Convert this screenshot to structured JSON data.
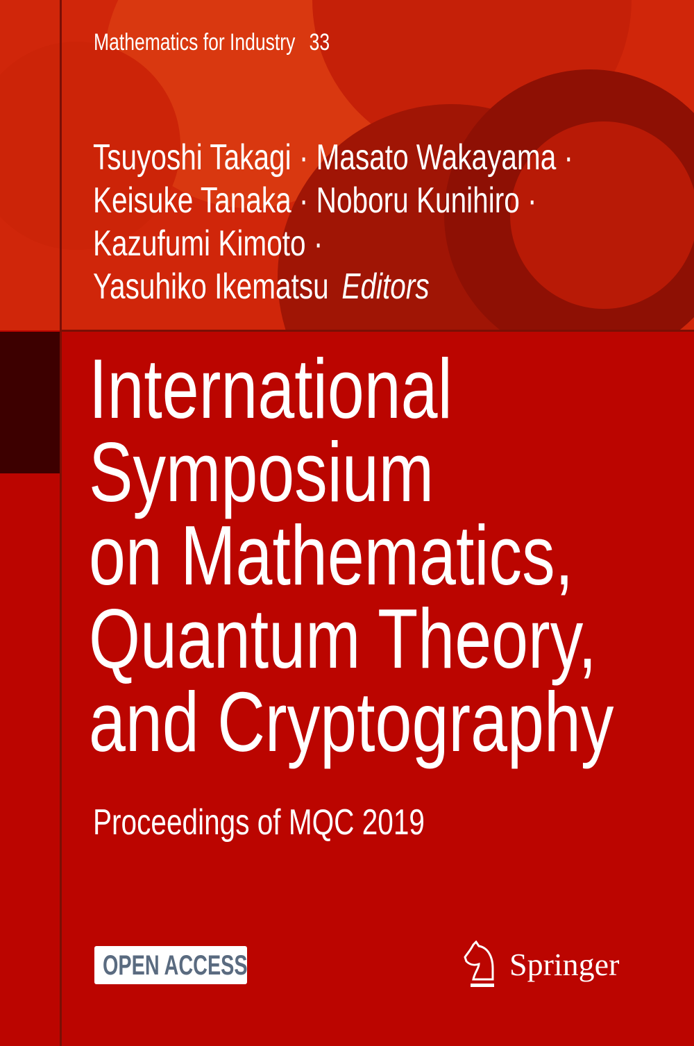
{
  "series": {
    "name": "Mathematics for Industry",
    "number": "33"
  },
  "authors": {
    "lines": [
      "Tsuyoshi Takagi · Masato Wakayama ·",
      "Keisuke Tanaka · Noboru Kunihiro ·",
      "Kazufumi Kimoto ·",
      "Yasuhiko Ikematsu"
    ],
    "role": "Editors"
  },
  "title": {
    "lines": [
      "International",
      "Symposium",
      "on Mathematics,",
      "Quantum Theory,",
      "and Cryptography"
    ]
  },
  "subtitle": "Proceedings of MQC 2019",
  "badge": "OPEN ACCESS",
  "publisher": {
    "name": "Springer",
    "icon": "springer-knight-icon"
  },
  "colors": {
    "top": "#d0260a",
    "main": "#bb0500",
    "dark": "#3d0000",
    "badge_text": "#5a6b80"
  }
}
